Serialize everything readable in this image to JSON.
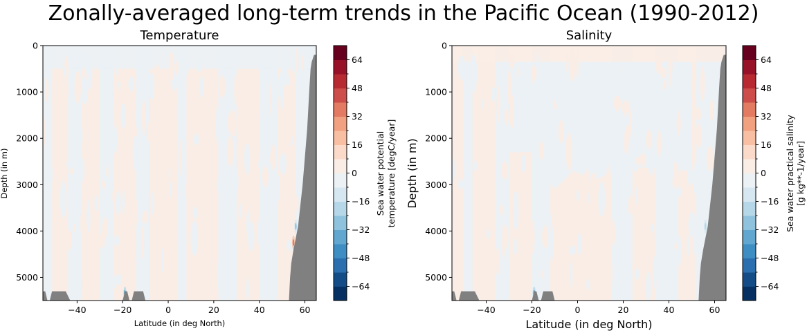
{
  "figure": {
    "suptitle": "Zonally-averaged long-term trends in the Pacific Ocean (1990-2012)"
  },
  "colormap": {
    "name": "RdBu_r",
    "levels": [
      -72,
      -64,
      -56,
      -48,
      -40,
      -32,
      -24,
      -16,
      -8,
      0,
      8,
      16,
      24,
      32,
      40,
      48,
      56,
      64,
      72
    ],
    "colors": [
      "#053061",
      "#134c87",
      "#2c6fb0",
      "#3f8ec3",
      "#62a7d0",
      "#8fc3dd",
      "#b6d7e8",
      "#d6e7f1",
      "#ebf1f5",
      "#f9ede6",
      "#fbdac9",
      "#f8bfa3",
      "#f1a17f",
      "#e27b62",
      "#cc4d4a",
      "#b72a32",
      "#971128",
      "#67001f"
    ],
    "land_color": "#808080"
  },
  "chart_data": [
    {
      "type": "heatmap",
      "title": "Temperature",
      "xlabel": "Latitude (in deg North)",
      "ylabel": "Depth (in m)",
      "xlim": [
        -55,
        65
      ],
      "ylim": [
        5500,
        0
      ],
      "xticks": [
        -40,
        -20,
        0,
        20,
        40,
        60
      ],
      "xtick_labels": [
        "−40",
        "−20",
        "0",
        "20",
        "40",
        "60"
      ],
      "yticks": [
        0,
        1000,
        2000,
        3000,
        4000,
        5000
      ],
      "ytick_labels": [
        "0",
        "1000",
        "2000",
        "3000",
        "4000",
        "5000"
      ],
      "colorbar": {
        "label_line1": "Sea water potential",
        "label_line2": "temperature [degC/year]",
        "ticks": [
          64,
          48,
          32,
          16,
          0,
          -16,
          -32,
          -48,
          -64
        ],
        "tick_labels": [
          "64",
          "48",
          "32",
          "16",
          "0",
          "−16",
          "−32",
          "−48",
          "−64"
        ],
        "range": [
          -72,
          72
        ]
      },
      "field_description": "Values mostly near zero (between -8 and 8): alternating vertical bands of light red (0 to 8) and light blue (-8 to 0); small localized stronger blue near -19N at depth and near 55N bottom slope; small red spot near 55N ~4200 m",
      "pattern_bands": [
        {
          "lat0": -55,
          "lat1": -51,
          "sign": -1
        },
        {
          "lat0": -51,
          "lat1": -44,
          "sign": 1
        },
        {
          "lat0": -44,
          "lat1": -38,
          "sign": -1
        },
        {
          "lat0": -38,
          "lat1": -30,
          "sign": 1
        },
        {
          "lat0": -30,
          "lat1": -24,
          "sign": -1
        },
        {
          "lat0": -24,
          "lat1": -14,
          "sign": 1
        },
        {
          "lat0": -14,
          "lat1": -8,
          "sign": -1
        },
        {
          "lat0": -8,
          "lat1": 4,
          "sign": 1
        },
        {
          "lat0": 4,
          "lat1": 8,
          "sign": -1
        },
        {
          "lat0": 8,
          "lat1": 22,
          "sign": 1
        },
        {
          "lat0": 22,
          "lat1": 30,
          "sign": -1
        },
        {
          "lat0": 30,
          "lat1": 40,
          "sign": 1
        },
        {
          "lat0": 40,
          "lat1": 48,
          "sign": -1
        },
        {
          "lat0": 48,
          "lat1": 56,
          "sign": 1
        },
        {
          "lat0": 56,
          "lat1": 65,
          "sign": -1
        }
      ],
      "surface_layer": {
        "depth": 500,
        "sign": -1
      },
      "hotspots": [
        {
          "lat": -19,
          "depth": 5350,
          "value": -48
        },
        {
          "lat": 55,
          "depth": 4250,
          "value": 32
        },
        {
          "lat": 56,
          "depth": 3900,
          "value": -32
        }
      ]
    },
    {
      "type": "heatmap",
      "title": "Salinity",
      "xlabel": "Latitude (in deg North)",
      "ylabel": "Depth (in m)",
      "xlim": [
        -55,
        65
      ],
      "ylim": [
        5500,
        0
      ],
      "xticks": [
        -40,
        -20,
        0,
        20,
        40,
        60
      ],
      "xtick_labels": [
        "−40",
        "−20",
        "0",
        "20",
        "40",
        "60"
      ],
      "yticks": [
        0,
        1000,
        2000,
        3000,
        4000,
        5000
      ],
      "ytick_labels": [
        "0",
        "1000",
        "2000",
        "3000",
        "4000",
        "5000"
      ],
      "colorbar": {
        "label_line1": "Sea water practical salinity",
        "label_line2": "[g kg**-1/year]",
        "ticks": [
          64,
          48,
          32,
          16,
          0,
          -16,
          -32,
          -48,
          -64
        ],
        "tick_labels": [
          "64",
          "48",
          "32",
          "16",
          "0",
          "−16",
          "−32",
          "−48",
          "−64"
        ],
        "range": [
          -72,
          72
        ]
      },
      "field_description": "Values mostly near zero: light red (0 to 8) near surface (0-300 m) and in deep water south of equator and 0-15N below 2500 m; light blue (-8 to 0) dominating 300-2500 m mid-latitudes; small stronger blue spots near -19N bottom",
      "pattern_bands": [
        {
          "lat0": -55,
          "lat1": -50,
          "sign": 1
        },
        {
          "lat0": -50,
          "lat1": -46,
          "sign": -1
        },
        {
          "lat0": -46,
          "lat1": -36,
          "sign": 1
        },
        {
          "lat0": -36,
          "lat1": -30,
          "sign": -1
        },
        {
          "lat0": -30,
          "lat1": -20,
          "sign": 1
        },
        {
          "lat0": -20,
          "lat1": -12,
          "sign": -1
        },
        {
          "lat0": -12,
          "lat1": 0,
          "sign": 1
        },
        {
          "lat0": 0,
          "lat1": 15,
          "sign": 1
        },
        {
          "lat0": 15,
          "lat1": 24,
          "sign": -1
        },
        {
          "lat0": 24,
          "lat1": 34,
          "sign": 1
        },
        {
          "lat0": 34,
          "lat1": 44,
          "sign": -1
        },
        {
          "lat0": 44,
          "lat1": 52,
          "sign": 1
        },
        {
          "lat0": 52,
          "lat1": 65,
          "sign": -1
        }
      ],
      "surface_layer": {
        "depth": 350,
        "sign": 1
      },
      "mid_layer": {
        "depth0": 350,
        "depth1": 2300,
        "lat0": -30,
        "lat1": 50,
        "sign": -1
      },
      "hotspots": [
        {
          "lat": -19,
          "depth": 5350,
          "value": -48
        },
        {
          "lat": 56,
          "depth": 3900,
          "value": -24
        }
      ]
    }
  ],
  "bathymetry": {
    "description": "grey land mask: seamounts near bottom at ~-50N, ~-19N and ~-13N; continental slope at northern edge from ~53N (bottom) rising to ~64N (surface)",
    "seamounts": [
      {
        "lat_start": -55,
        "lat_peak0": -55,
        "lat_peak1": -54,
        "lat_end": -53
      },
      {
        "lat_start": -52,
        "lat_peak0": -51,
        "lat_peak1": -45,
        "lat_end": -43
      },
      {
        "lat_start": -20,
        "lat_peak0": -19,
        "lat_peak1": -18,
        "lat_end": -17
      },
      {
        "lat_start": -16,
        "lat_peak0": -15,
        "lat_peak1": -11,
        "lat_end": -10
      }
    ],
    "seamount_top_depth": 5300,
    "slope": [
      [
        53,
        5500
      ],
      [
        53.5,
        5000
      ],
      [
        54,
        4700
      ],
      [
        55,
        4400
      ],
      [
        57,
        3900
      ],
      [
        59,
        3000
      ],
      [
        61,
        1800
      ],
      [
        62,
        900
      ],
      [
        62.5,
        500
      ],
      [
        63,
        350
      ],
      [
        64,
        200
      ],
      [
        65,
        200
      ]
    ]
  }
}
